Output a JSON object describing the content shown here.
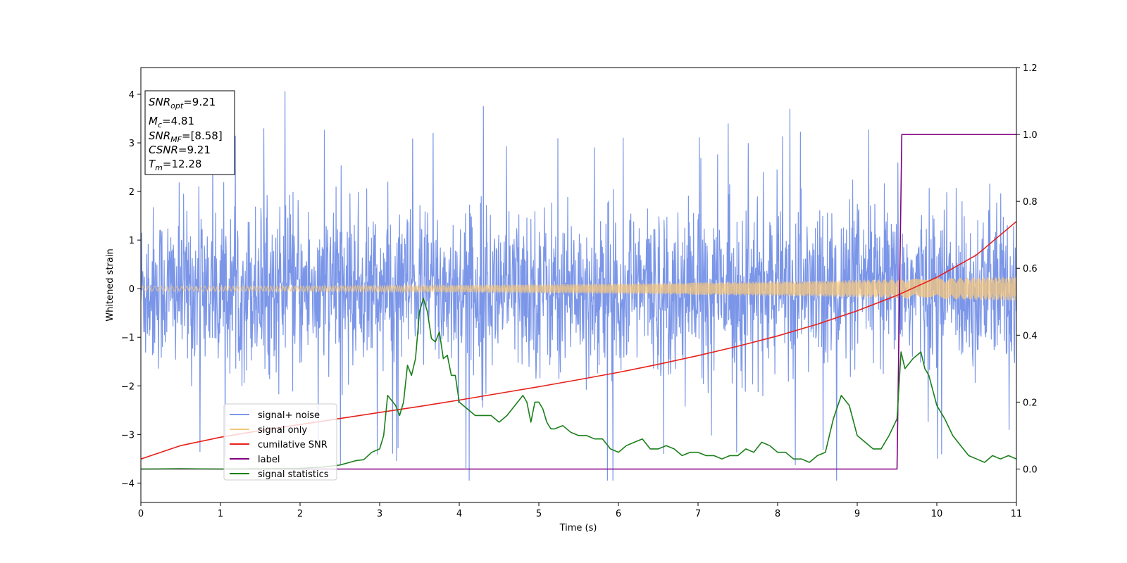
{
  "chart_data": {
    "type": "line",
    "title": "",
    "xlabel": "Time (s)",
    "ylabel": "Whitened strain",
    "xlim": [
      0,
      11
    ],
    "ylim": [
      -4.4,
      4.55
    ],
    "y2lim": [
      -0.1,
      1.2
    ],
    "xticks": [
      "0",
      "1",
      "2",
      "3",
      "4",
      "5",
      "6",
      "7",
      "8",
      "9",
      "10",
      "11"
    ],
    "yticks": [
      "−4",
      "−3",
      "−2",
      "−1",
      "0",
      "1",
      "2",
      "3",
      "4"
    ],
    "y2ticks": [
      "0.0",
      "0.2",
      "0.4",
      "0.6",
      "0.8",
      "1.0",
      "1.2"
    ],
    "grid": false,
    "legend_position": "lower-left",
    "annotation": [
      {
        "var": "SNR",
        "sub": "opt",
        "value": "=9.21"
      },
      {
        "var": "M",
        "sub": "c",
        "value": "=4.81"
      },
      {
        "var": "SNR",
        "sub": "MF",
        "value": "=[8.58]"
      },
      {
        "var": "CSNR",
        "sub": "",
        "value": "=9.21"
      },
      {
        "var": "T",
        "sub": "m",
        "value": "=12.28"
      }
    ],
    "series": [
      {
        "name": "signal+ noise",
        "color": "#7b96e8",
        "axis": "left",
        "kind": "noise",
        "description_values": {
          "x_range": [
            0,
            11
          ],
          "typical_amplitude": 1.6,
          "max": 4.17,
          "min": -3.95
        }
      },
      {
        "name": "signal only",
        "color": "#f5c77e",
        "axis": "left",
        "kind": "chirp",
        "amplitude_start": 0.05,
        "amplitude_end": 0.25,
        "x_range": [
          0,
          11
        ]
      },
      {
        "name": "cumilative SNR",
        "color": "#e8201a",
        "axis": "right",
        "x": [
          0,
          0.5,
          1,
          1.5,
          2,
          2.5,
          3,
          3.5,
          4,
          4.5,
          5,
          5.5,
          6,
          6.5,
          7,
          7.5,
          8,
          8.5,
          9,
          9.5,
          10,
          10.5,
          11
        ],
        "y": [
          0.03,
          0.07,
          0.095,
          0.115,
          0.133,
          0.151,
          0.169,
          0.187,
          0.206,
          0.226,
          0.246,
          0.267,
          0.289,
          0.313,
          0.339,
          0.367,
          0.398,
          0.433,
          0.473,
          0.519,
          0.573,
          0.64,
          0.74
        ]
      },
      {
        "name": "label",
        "color": "#800080",
        "axis": "right",
        "x": [
          0,
          9.5,
          9.56,
          11
        ],
        "y": [
          0,
          0,
          1,
          1
        ]
      },
      {
        "name": "signal statistics",
        "color": "#1a7f1a",
        "axis": "right",
        "x": [
          0,
          0.5,
          1,
          1.5,
          2,
          2.3,
          2.5,
          2.7,
          2.8,
          2.9,
          3.0,
          3.05,
          3.1,
          3.2,
          3.25,
          3.3,
          3.35,
          3.4,
          3.45,
          3.5,
          3.55,
          3.6,
          3.65,
          3.7,
          3.75,
          3.8,
          3.85,
          3.9,
          3.95,
          4.0,
          4.05,
          4.1,
          4.2,
          4.3,
          4.4,
          4.5,
          4.55,
          4.6,
          4.7,
          4.8,
          4.85,
          4.9,
          4.95,
          5.0,
          5.05,
          5.1,
          5.15,
          5.2,
          5.3,
          5.4,
          5.5,
          5.6,
          5.7,
          5.8,
          5.9,
          6.0,
          6.1,
          6.2,
          6.3,
          6.4,
          6.5,
          6.6,
          6.7,
          6.8,
          6.9,
          7.0,
          7.1,
          7.2,
          7.3,
          7.4,
          7.5,
          7.6,
          7.7,
          7.8,
          7.9,
          8.0,
          8.1,
          8.2,
          8.3,
          8.4,
          8.5,
          8.6,
          8.7,
          8.8,
          8.9,
          9.0,
          9.1,
          9.2,
          9.3,
          9.4,
          9.5,
          9.55,
          9.6,
          9.7,
          9.8,
          9.85,
          9.9,
          10.0,
          10.1,
          10.2,
          10.3,
          10.4,
          10.5,
          10.6,
          10.7,
          10.8,
          10.9,
          11.0
        ],
        "y": [
          0.0,
          0.001,
          0.0,
          0.001,
          0.002,
          0.006,
          0.012,
          0.025,
          0.028,
          0.05,
          0.06,
          0.1,
          0.22,
          0.19,
          0.16,
          0.2,
          0.31,
          0.28,
          0.33,
          0.47,
          0.51,
          0.47,
          0.39,
          0.38,
          0.41,
          0.33,
          0.34,
          0.28,
          0.28,
          0.2,
          0.19,
          0.18,
          0.16,
          0.16,
          0.16,
          0.14,
          0.15,
          0.16,
          0.19,
          0.22,
          0.2,
          0.14,
          0.2,
          0.2,
          0.18,
          0.14,
          0.12,
          0.12,
          0.13,
          0.11,
          0.1,
          0.1,
          0.09,
          0.09,
          0.06,
          0.05,
          0.07,
          0.08,
          0.09,
          0.06,
          0.06,
          0.07,
          0.06,
          0.04,
          0.05,
          0.05,
          0.04,
          0.04,
          0.03,
          0.04,
          0.04,
          0.06,
          0.05,
          0.08,
          0.07,
          0.05,
          0.05,
          0.03,
          0.03,
          0.02,
          0.04,
          0.05,
          0.15,
          0.22,
          0.19,
          0.1,
          0.08,
          0.06,
          0.06,
          0.1,
          0.15,
          0.35,
          0.3,
          0.33,
          0.35,
          0.3,
          0.28,
          0.19,
          0.15,
          0.1,
          0.07,
          0.04,
          0.03,
          0.02,
          0.04,
          0.03,
          0.04,
          0.03
        ]
      }
    ]
  }
}
